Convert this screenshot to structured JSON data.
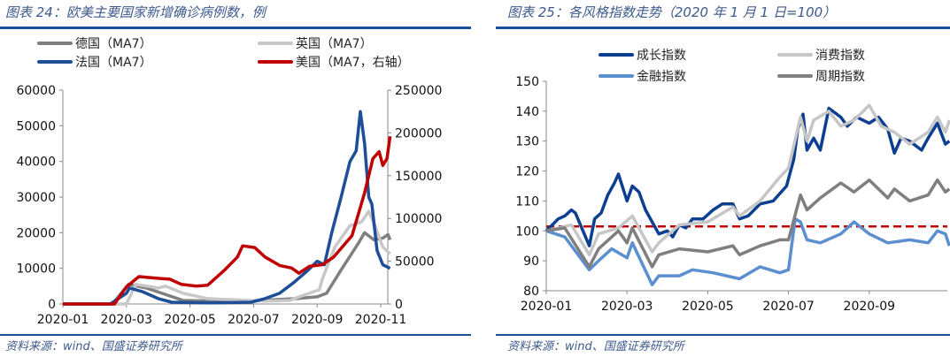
{
  "left": {
    "title": "图表 24：欧美主要国家新增确诊病例数，例",
    "source": "资料来源：wind、国盛证券研究所"
  },
  "right": {
    "title": "图表 25：各风格指数走势（2020 年 1 月 1 日=100）",
    "source": "资料来源：wind、国盛证券研究所"
  },
  "chart_data": [
    {
      "type": "line",
      "title": "图表 24：欧美主要国家新增确诊病例数，例",
      "x_ticks": [
        "2020-01",
        "2020-03",
        "2020-05",
        "2020-07",
        "2020-09",
        "2020-11"
      ],
      "ylim": [
        0,
        60000
      ],
      "y_ticks": [
        0,
        10000,
        20000,
        30000,
        40000,
        50000,
        60000
      ],
      "y2lim": [
        0,
        250000
      ],
      "y2_ticks": [
        0,
        50000,
        100000,
        150000,
        200000,
        250000
      ],
      "grid": false,
      "legend": "top",
      "series": [
        {
          "name": "德国（MA7）",
          "color": "#7f7f7f",
          "axis": "left",
          "points": [
            [
              "2020-01-01",
              0
            ],
            [
              "2020-02-18",
              0
            ],
            [
              "2020-03-03",
              5500
            ],
            [
              "2020-03-20",
              4500
            ],
            [
              "2020-04-25",
              1000
            ],
            [
              "2020-06-15",
              700
            ],
            [
              "2020-08-12",
              1500
            ],
            [
              "2020-09-01",
              2000
            ],
            [
              "2020-09-10",
              3000
            ],
            [
              "2020-09-25",
              10000
            ],
            [
              "2020-10-10",
              17000
            ],
            [
              "2020-10-16",
              20000
            ],
            [
              "2020-10-25",
              18000
            ],
            [
              "2020-11-03",
              18500
            ],
            [
              "2020-11-08",
              19500
            ],
            [
              "2020-11-10",
              18000
            ]
          ]
        },
        {
          "name": "英国（MA7）",
          "color": "#c8c8c8",
          "axis": "left",
          "points": [
            [
              "2020-01-01",
              0
            ],
            [
              "2020-03-01",
              0
            ],
            [
              "2020-03-10",
              5500
            ],
            [
              "2020-04-01",
              4500
            ],
            [
              "2020-04-08",
              5000
            ],
            [
              "2020-04-25",
              3000
            ],
            [
              "2020-05-18",
              1500
            ],
            [
              "2020-07-12",
              800
            ],
            [
              "2020-08-05",
              1000
            ],
            [
              "2020-08-19",
              2500
            ],
            [
              "2020-09-03",
              4000
            ],
            [
              "2020-09-06",
              7000
            ],
            [
              "2020-09-18",
              16000
            ],
            [
              "2020-10-02",
              22000
            ],
            [
              "2020-10-13",
              23000
            ],
            [
              "2020-10-20",
              26000
            ],
            [
              "2020-10-26",
              22000
            ],
            [
              "2020-11-03",
              16000
            ],
            [
              "2020-11-10",
              14000
            ]
          ]
        },
        {
          "name": "法国（MA7）",
          "color": "#1f4e99",
          "axis": "left",
          "points": [
            [
              "2020-01-01",
              0
            ],
            [
              "2020-02-16",
              0
            ],
            [
              "2020-03-01",
              3000
            ],
            [
              "2020-03-04",
              4500
            ],
            [
              "2020-03-16",
              3500
            ],
            [
              "2020-04-01",
              1500
            ],
            [
              "2020-04-14",
              500
            ],
            [
              "2020-05-18",
              300
            ],
            [
              "2020-06-29",
              500
            ],
            [
              "2020-07-12",
              1500
            ],
            [
              "2020-07-26",
              3000
            ],
            [
              "2020-08-09",
              6000
            ],
            [
              "2020-08-21",
              9000
            ],
            [
              "2020-09-01",
              12000
            ],
            [
              "2020-09-08",
              11000
            ],
            [
              "2020-09-15",
              20000
            ],
            [
              "2020-09-24",
              30000
            ],
            [
              "2020-10-02",
              40000
            ],
            [
              "2020-10-08",
              43000
            ],
            [
              "2020-10-12",
              54000
            ],
            [
              "2020-10-16",
              45000
            ],
            [
              "2020-10-20",
              30000
            ],
            [
              "2020-10-23",
              28000
            ],
            [
              "2020-10-28",
              15000
            ],
            [
              "2020-11-03",
              11000
            ],
            [
              "2020-11-10",
              10000
            ]
          ]
        },
        {
          "name": "美国（MA7，右轴）",
          "color": "#c00000",
          "axis": "right",
          "points": [
            [
              "2020-01-01",
              0
            ],
            [
              "2020-02-20",
              0
            ],
            [
              "2020-03-01",
              20000
            ],
            [
              "2020-03-13",
              32000
            ],
            [
              "2020-04-01",
              30000
            ],
            [
              "2020-04-12",
              29000
            ],
            [
              "2020-04-23",
              23000
            ],
            [
              "2020-05-07",
              21000
            ],
            [
              "2020-05-18",
              22000
            ],
            [
              "2020-06-04",
              40000
            ],
            [
              "2020-06-16",
              55000
            ],
            [
              "2020-06-21",
              68000
            ],
            [
              "2020-07-02",
              66000
            ],
            [
              "2020-07-12",
              55000
            ],
            [
              "2020-07-26",
              45000
            ],
            [
              "2020-08-07",
              42000
            ],
            [
              "2020-08-14",
              36000
            ],
            [
              "2020-08-24",
              44000
            ],
            [
              "2020-09-06",
              46000
            ],
            [
              "2020-09-17",
              55000
            ],
            [
              "2020-10-04",
              80000
            ],
            [
              "2020-10-16",
              130000
            ],
            [
              "2020-10-24",
              170000
            ],
            [
              "2020-10-30",
              178000
            ],
            [
              "2020-11-03",
              162000
            ],
            [
              "2020-11-07",
              170000
            ],
            [
              "2020-11-10",
              196000
            ]
          ]
        }
      ]
    },
    {
      "type": "line",
      "title": "图表 25：各风格指数走势（2020 年 1 月 1 日=100）",
      "x_ticks": [
        "2020-01",
        "2020-03",
        "2020-05",
        "2020-07",
        "2020-09"
      ],
      "ylim": [
        80,
        150
      ],
      "y_ticks": [
        80,
        90,
        100,
        110,
        120,
        130,
        140,
        150
      ],
      "grid": false,
      "legend": "top",
      "reference_line": {
        "value": 101.5,
        "color": "#c00000",
        "style": "dashed"
      },
      "series": [
        {
          "name": "成长指数",
          "color": "#0d3f91",
          "points": [
            [
              "2020-01-01",
              100
            ],
            [
              "2020-01-10",
              104
            ],
            [
              "2020-01-15",
              105
            ],
            [
              "2020-01-20",
              107
            ],
            [
              "2020-01-23",
              106
            ],
            [
              "2020-02-03",
              95
            ],
            [
              "2020-02-07",
              104
            ],
            [
              "2020-02-12",
              106
            ],
            [
              "2020-02-17",
              112
            ],
            [
              "2020-02-22",
              116
            ],
            [
              "2020-02-25",
              119
            ],
            [
              "2020-03-01",
              110
            ],
            [
              "2020-03-05",
              115
            ],
            [
              "2020-03-10",
              113
            ],
            [
              "2020-03-15",
              107
            ],
            [
              "2020-03-20",
              103
            ],
            [
              "2020-03-25",
              99
            ],
            [
              "2020-04-01",
              100
            ],
            [
              "2020-04-05",
              98
            ],
            [
              "2020-04-10",
              102
            ],
            [
              "2020-04-15",
              101
            ],
            [
              "2020-04-20",
              104
            ],
            [
              "2020-04-28",
              104
            ],
            [
              "2020-05-05",
              107
            ],
            [
              "2020-05-12",
              109
            ],
            [
              "2020-05-20",
              109
            ],
            [
              "2020-05-25",
              104
            ],
            [
              "2020-06-01",
              105
            ],
            [
              "2020-06-10",
              109
            ],
            [
              "2020-06-20",
              110
            ],
            [
              "2020-06-30",
              115
            ],
            [
              "2020-07-05",
              124
            ],
            [
              "2020-07-08",
              134
            ],
            [
              "2020-07-12",
              139
            ],
            [
              "2020-07-15",
              127
            ],
            [
              "2020-07-20",
              131
            ],
            [
              "2020-07-25",
              127
            ],
            [
              "2020-08-01",
              141
            ],
            [
              "2020-08-10",
              138
            ],
            [
              "2020-08-15",
              135
            ],
            [
              "2020-08-22",
              138
            ],
            [
              "2020-09-01",
              136
            ],
            [
              "2020-09-08",
              138
            ],
            [
              "2020-09-15",
              134
            ],
            [
              "2020-09-20",
              126
            ],
            [
              "2020-09-25",
              131
            ],
            [
              "2020-10-01",
              130
            ],
            [
              "2020-10-10",
              127
            ],
            [
              "2020-10-15",
              131
            ],
            [
              "2020-10-22",
              136
            ],
            [
              "2020-10-28",
              129
            ],
            [
              "2020-10-31",
              130
            ]
          ]
        },
        {
          "name": "消费指数",
          "color": "#c6c6c6",
          "points": [
            [
              "2020-01-01",
              100
            ],
            [
              "2020-01-20",
              102
            ],
            [
              "2020-02-03",
              92
            ],
            [
              "2020-02-10",
              99
            ],
            [
              "2020-02-25",
              101
            ],
            [
              "2020-03-05",
              105
            ],
            [
              "2020-03-20",
              93
            ],
            [
              "2020-03-25",
              96
            ],
            [
              "2020-04-10",
              102
            ],
            [
              "2020-05-01",
              103
            ],
            [
              "2020-05-20",
              108
            ],
            [
              "2020-05-25",
              105
            ],
            [
              "2020-06-10",
              110
            ],
            [
              "2020-06-25",
              118
            ],
            [
              "2020-07-01",
              121
            ],
            [
              "2020-07-10",
              138
            ],
            [
              "2020-07-15",
              130
            ],
            [
              "2020-07-20",
              137
            ],
            [
              "2020-08-01",
              140
            ],
            [
              "2020-08-10",
              135
            ],
            [
              "2020-08-20",
              137
            ],
            [
              "2020-09-01",
              142
            ],
            [
              "2020-09-10",
              135
            ],
            [
              "2020-09-20",
              133
            ],
            [
              "2020-10-01",
              129
            ],
            [
              "2020-10-15",
              133
            ],
            [
              "2020-10-22",
              138
            ],
            [
              "2020-10-28",
              133
            ],
            [
              "2020-10-31",
              137
            ]
          ]
        },
        {
          "name": "金融指数",
          "color": "#5b8fd0",
          "points": [
            [
              "2020-01-01",
              100
            ],
            [
              "2020-01-15",
              98
            ],
            [
              "2020-02-03",
              87
            ],
            [
              "2020-02-10",
              90
            ],
            [
              "2020-02-20",
              94
            ],
            [
              "2020-03-01",
              91
            ],
            [
              "2020-03-05",
              96
            ],
            [
              "2020-03-20",
              82
            ],
            [
              "2020-03-25",
              85
            ],
            [
              "2020-04-10",
              85
            ],
            [
              "2020-04-20",
              87
            ],
            [
              "2020-05-05",
              86
            ],
            [
              "2020-05-25",
              84
            ],
            [
              "2020-06-10",
              88
            ],
            [
              "2020-06-25",
              86
            ],
            [
              "2020-07-01",
              87
            ],
            [
              "2020-07-06",
              104
            ],
            [
              "2020-07-10",
              103
            ],
            [
              "2020-07-15",
              97
            ],
            [
              "2020-07-25",
              96
            ],
            [
              "2020-08-10",
              99
            ],
            [
              "2020-08-20",
              103
            ],
            [
              "2020-09-01",
              99
            ],
            [
              "2020-09-15",
              96
            ],
            [
              "2020-10-01",
              97
            ],
            [
              "2020-10-15",
              96
            ],
            [
              "2020-10-22",
              100
            ],
            [
              "2020-10-28",
              99
            ],
            [
              "2020-10-31",
              95
            ]
          ]
        },
        {
          "name": "周期指数",
          "color": "#7f7f7f",
          "points": [
            [
              "2020-01-01",
              100
            ],
            [
              "2020-01-15",
              101
            ],
            [
              "2020-02-03",
              88
            ],
            [
              "2020-02-10",
              94
            ],
            [
              "2020-02-25",
              100
            ],
            [
              "2020-03-01",
              96
            ],
            [
              "2020-03-05",
              101
            ],
            [
              "2020-03-20",
              88
            ],
            [
              "2020-03-25",
              92
            ],
            [
              "2020-04-10",
              94
            ],
            [
              "2020-05-01",
              93
            ],
            [
              "2020-05-20",
              95
            ],
            [
              "2020-05-25",
              92
            ],
            [
              "2020-06-10",
              95
            ],
            [
              "2020-06-25",
              97
            ],
            [
              "2020-07-01",
              97
            ],
            [
              "2020-07-10",
              112
            ],
            [
              "2020-07-15",
              107
            ],
            [
              "2020-07-25",
              111
            ],
            [
              "2020-08-10",
              116
            ],
            [
              "2020-08-20",
              113
            ],
            [
              "2020-09-01",
              117
            ],
            [
              "2020-09-15",
              111
            ],
            [
              "2020-09-20",
              114
            ],
            [
              "2020-10-01",
              110
            ],
            [
              "2020-10-15",
              112
            ],
            [
              "2020-10-22",
              117
            ],
            [
              "2020-10-28",
              113
            ],
            [
              "2020-10-31",
              114
            ]
          ]
        }
      ]
    }
  ]
}
